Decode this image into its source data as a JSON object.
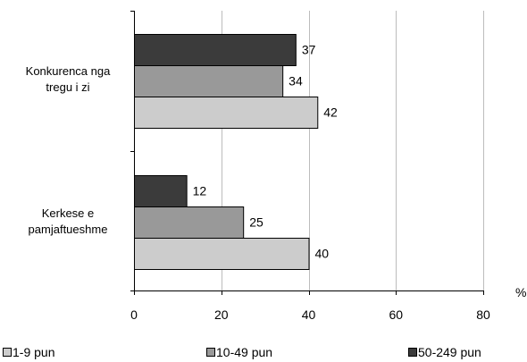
{
  "chart_data": {
    "type": "bar",
    "orientation": "horizontal",
    "categories": [
      [
        "Konkurenca nga",
        "tregu i zi"
      ],
      [
        "Kerkese e",
        "pamjaftueshme"
      ]
    ],
    "series": [
      {
        "name": "50-249 pun",
        "color": "#3b3b3b",
        "values": [
          37,
          12
        ]
      },
      {
        "name": "10-49 pun",
        "color": "#999999",
        "values": [
          34,
          25
        ]
      },
      {
        "name": "1-9 pun",
        "color": "#cccccc",
        "values": [
          42,
          40
        ]
      }
    ],
    "data_labels": [
      [
        "37",
        "34",
        "42"
      ],
      [
        "12",
        "25",
        "40"
      ]
    ],
    "xlim": [
      0,
      80
    ],
    "xticks": [
      0,
      20,
      40,
      60,
      80
    ],
    "x_tick_labels": [
      "0",
      "20",
      "40",
      "60",
      "80"
    ],
    "x_unit": "%",
    "grid": "vertical",
    "legend": {
      "position": "bottom",
      "order": [
        "1-9 pun",
        "10-49 pun",
        "50-249 pun"
      ],
      "labels": [
        "1-9 pun",
        "10-49 pun",
        "50-249 pun"
      ]
    }
  }
}
